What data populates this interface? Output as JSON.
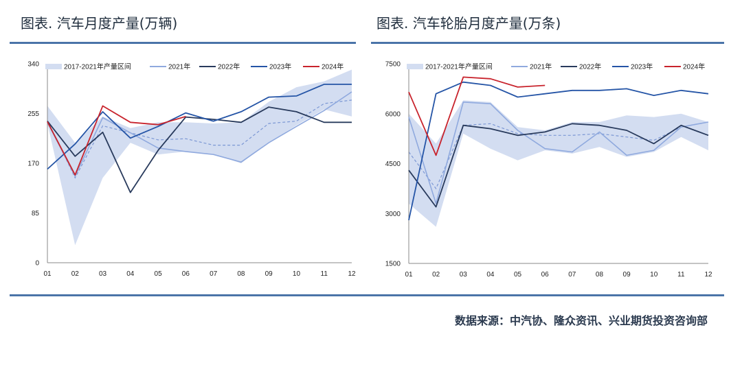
{
  "titles": {
    "left": "图表.  汽车月度产量(万辆)",
    "right": "图表.  汽车轮胎月度产量(万条)"
  },
  "source": "数据来源：中汽协、隆众资讯、兴业期货投资咨询部",
  "colors": {
    "band": "#d3ddf1",
    "avg": "#7b97d4",
    "y2021": "#8fa9de",
    "y2022": "#283a5c",
    "y2023": "#2454a6",
    "y2024": "#c8232c"
  },
  "chart_data": [
    {
      "type": "line",
      "title": "图表.  汽车月度产量(万辆)",
      "categories": [
        "01",
        "02",
        "03",
        "04",
        "05",
        "06",
        "07",
        "08",
        "09",
        "10",
        "11",
        "12"
      ],
      "ylim": [
        0,
        340
      ],
      "yticks": [
        "0",
        "85",
        "170",
        "255",
        "340"
      ],
      "band": {
        "name": "2017-2021年产量区间",
        "low": [
          238,
          30,
          145,
          205,
          185,
          190,
          186,
          170,
          205,
          235,
          262,
          250
        ],
        "high": [
          268,
          205,
          250,
          230,
          240,
          240,
          238,
          240,
          275,
          300,
          310,
          330
        ]
      },
      "band_mean": [
        243,
        145,
        234,
        222,
        210,
        212,
        201,
        201,
        238,
        242,
        272,
        278
      ],
      "series": [
        {
          "name": "2021年",
          "values": [
            240,
            148,
            248,
            222,
            196,
            190,
            185,
            172,
            205,
            233,
            260,
            292
          ]
        },
        {
          "name": "2022年",
          "values": [
            242,
            182,
            223,
            120,
            192,
            249,
            245,
            240,
            266,
            258,
            240,
            240
          ]
        },
        {
          "name": "2023年",
          "values": [
            160,
            203,
            258,
            213,
            233,
            256,
            242,
            258,
            283,
            285,
            305,
            305
          ]
        },
        {
          "name": "2024年",
          "values": [
            241,
            150,
            268,
            240,
            236,
            250,
            null,
            null,
            null,
            null,
            null,
            null
          ]
        }
      ],
      "legend": "top",
      "grid": false
    },
    {
      "type": "line",
      "title": "图表.  汽车轮胎月度产量(万条)",
      "categories": [
        "01",
        "02",
        "03",
        "04",
        "05",
        "06",
        "07",
        "08",
        "09",
        "10",
        "11",
        "12"
      ],
      "ylim": [
        1500,
        7500
      ],
      "yticks": [
        "1500",
        "3000",
        "4500",
        "6000",
        "7500"
      ],
      "band": {
        "name": "2017-2021年产量区间",
        "low": [
          3300,
          2600,
          5400,
          4950,
          4600,
          4900,
          4800,
          5000,
          4700,
          4850,
          5300,
          4900
        ],
        "high": [
          6000,
          5100,
          6400,
          6350,
          5600,
          5500,
          5750,
          5750,
          5950,
          5900,
          6000,
          5750
        ]
      },
      "band_mean": [
        4850,
        3750,
        5650,
        5700,
        5400,
        5350,
        5350,
        5400,
        5300,
        5200,
        5600,
        5750
      ],
      "series": [
        {
          "name": "2021年",
          "values": [
            5900,
            3300,
            6350,
            6300,
            5500,
            4950,
            4850,
            5450,
            4750,
            4900,
            5600,
            5750
          ]
        },
        {
          "name": "2022年",
          "values": [
            4300,
            3200,
            5650,
            5550,
            5350,
            5450,
            5700,
            5650,
            5500,
            5100,
            5650,
            5350
          ]
        },
        {
          "name": "2023年",
          "values": [
            2800,
            6600,
            6950,
            6850,
            6500,
            6600,
            6700,
            6700,
            6750,
            6550,
            6700,
            6600
          ]
        },
        {
          "name": "2024年",
          "values": [
            6650,
            4750,
            7100,
            7050,
            6800,
            6850,
            null,
            null,
            null,
            null,
            null,
            null
          ]
        }
      ],
      "legend": "top",
      "grid": false
    }
  ]
}
